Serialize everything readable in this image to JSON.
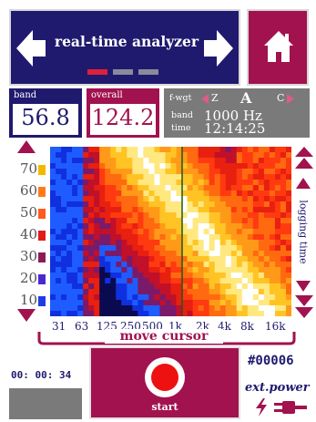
{
  "header": {
    "title": "real-time analyzer",
    "page_dots": [
      "active",
      "inactive",
      "inactive"
    ],
    "left_arrow_icon": "arrow-left-icon",
    "right_arrow_icon": "arrow-right-icon",
    "home_icon": "home-icon"
  },
  "readouts": {
    "band_label": "band",
    "band_value": "56.8",
    "overall_label": "overall",
    "overall_value": "124.2"
  },
  "info": {
    "fwgt_label": "f-wgt",
    "weight_options": [
      "Z",
      "A",
      "C"
    ],
    "weight_selected": "A",
    "band_label": "band",
    "band_value": "1000 Hz",
    "time_label": "time",
    "time_value": "12:14:25"
  },
  "spectrogram": {
    "level_ticks": [
      "70",
      "60",
      "50",
      "40",
      "30",
      "20",
      "10"
    ],
    "level_colors": [
      "#f5b800",
      "#ff7a1a",
      "#ff5a1f",
      "#e01b1b",
      "#8e1a58",
      "#4a2ad0",
      "#1f3de0"
    ],
    "freq_labels": [
      "31",
      "63",
      "125",
      "250",
      "500",
      "1k",
      "2k",
      "4k",
      "8k",
      "16k"
    ],
    "cursor_label": "move cursor",
    "logging_label": "logging time"
  },
  "controls": {
    "elapsed": "00: 00: 34",
    "start_label": "start",
    "record_id": "#00006",
    "power_label": "ext.power"
  },
  "colors": {
    "navy": "#1f1a6e",
    "magenta": "#a1124f",
    "gray": "#7a7a7a",
    "record_red": "#ee1111"
  }
}
